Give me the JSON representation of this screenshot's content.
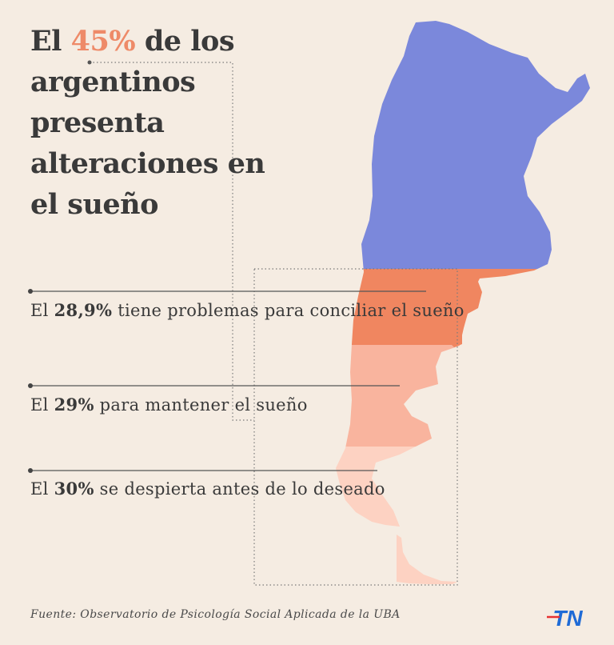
{
  "headline": {
    "before": "El ",
    "highlight": "45%",
    "after": " de los argentinos presenta alteraciones en el sueño",
    "highlight_color": "#ee8a68"
  },
  "stats": [
    {
      "prefix": "El ",
      "value": "28,9%",
      "suffix": " tiene problemas para conciliar el sueño",
      "color": "#f08660"
    },
    {
      "prefix": "El ",
      "value": "29%",
      "suffix": " para mantener el sueño",
      "color": "#f9b49e"
    },
    {
      "prefix": "El ",
      "value": "30%",
      "suffix": " se despierta antes de lo deseado",
      "color": "#fdd2c2"
    }
  ],
  "map": {
    "top_region_color": "#7b88db"
  },
  "source": "Fuente: Observatorio de Psicología Social Aplicada de la UBA",
  "logo": {
    "text": "TN",
    "color": "#1f6bd6"
  }
}
